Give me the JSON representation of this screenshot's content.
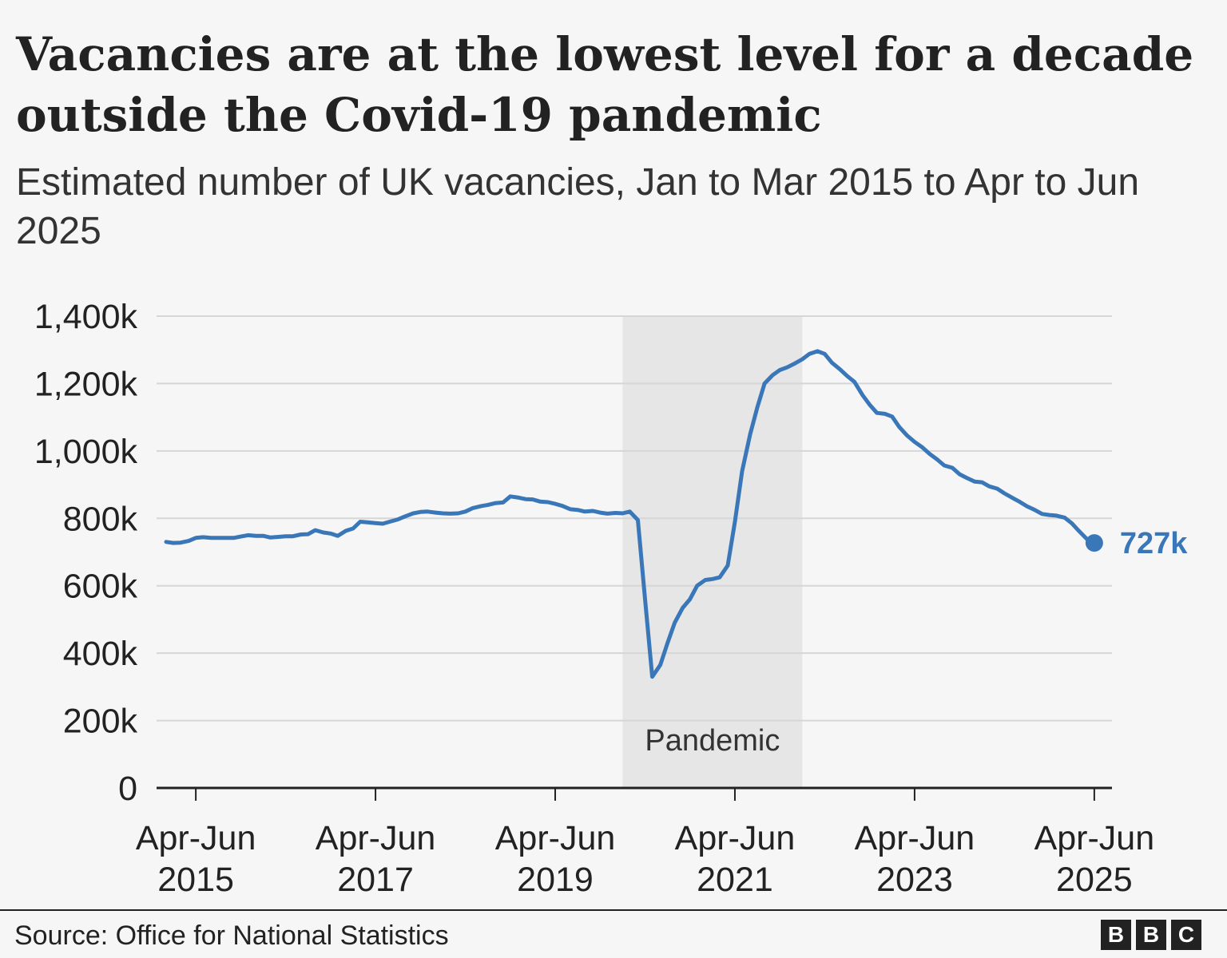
{
  "title": "Vacancies are at the lowest level for a decade outside the Covid-19 pandemic",
  "subtitle": "Estimated number of UK vacancies, Jan to Mar 2015 to Apr to Jun 2025",
  "source": "Source: Office for National Statistics",
  "logo": [
    "B",
    "B",
    "C"
  ],
  "colors": {
    "line": "#3a77b8",
    "band": "#e6e6e6",
    "grid": "#d6d6d6",
    "axis": "#222222",
    "text": "#222222",
    "background": "#f6f6f6"
  },
  "chart_data": {
    "type": "line",
    "y_tick_labels": [
      "0",
      "200k",
      "400k",
      "600k",
      "800k",
      "1,000k",
      "1,200k",
      "1,400k"
    ],
    "y_ticks": [
      0,
      200,
      400,
      600,
      800,
      1000,
      1200,
      1400
    ],
    "ylim": [
      0,
      1400
    ],
    "y_unit": "thousands",
    "grid": true,
    "x_ticks": [
      {
        "label_line1": "Apr-Jun",
        "label_line2": "2015",
        "x": 2015.42
      },
      {
        "label_line1": "Apr-Jun",
        "label_line2": "2017",
        "x": 2017.42
      },
      {
        "label_line1": "Apr-Jun",
        "label_line2": "2019",
        "x": 2019.42
      },
      {
        "label_line1": "Apr-Jun",
        "label_line2": "2021",
        "x": 2021.42
      },
      {
        "label_line1": "Apr-Jun",
        "label_line2": "2023",
        "x": 2023.42
      },
      {
        "label_line1": "Apr-Jun",
        "label_line2": "2025",
        "x": 2025.42
      }
    ],
    "xlim": [
      2015.09,
      2025.51
    ],
    "shaded_period": {
      "label": "Pandemic",
      "start": 2020.17,
      "end": 2022.17
    },
    "end_label": "727k",
    "series": [
      {
        "points": [
          [
            2015.09,
            730
          ],
          [
            2015.17,
            727
          ],
          [
            2015.25,
            728
          ],
          [
            2015.34,
            733
          ],
          [
            2015.42,
            742
          ],
          [
            2015.5,
            744
          ],
          [
            2015.59,
            742
          ],
          [
            2015.67,
            742
          ],
          [
            2015.75,
            742
          ],
          [
            2015.84,
            742
          ],
          [
            2015.92,
            746
          ],
          [
            2016.0,
            750
          ],
          [
            2016.09,
            748
          ],
          [
            2016.17,
            748
          ],
          [
            2016.25,
            743
          ],
          [
            2016.34,
            745
          ],
          [
            2016.42,
            747
          ],
          [
            2016.5,
            747
          ],
          [
            2016.59,
            752
          ],
          [
            2016.67,
            753
          ],
          [
            2016.75,
            765
          ],
          [
            2016.84,
            758
          ],
          [
            2016.92,
            755
          ],
          [
            2017.0,
            748
          ],
          [
            2017.09,
            763
          ],
          [
            2017.17,
            770
          ],
          [
            2017.25,
            790
          ],
          [
            2017.34,
            788
          ],
          [
            2017.42,
            786
          ],
          [
            2017.5,
            784
          ],
          [
            2017.59,
            791
          ],
          [
            2017.67,
            797
          ],
          [
            2017.75,
            806
          ],
          [
            2017.84,
            815
          ],
          [
            2017.92,
            819
          ],
          [
            2018.0,
            820
          ],
          [
            2018.09,
            817
          ],
          [
            2018.17,
            815
          ],
          [
            2018.25,
            814
          ],
          [
            2018.34,
            815
          ],
          [
            2018.42,
            820
          ],
          [
            2018.5,
            830
          ],
          [
            2018.59,
            836
          ],
          [
            2018.67,
            840
          ],
          [
            2018.75,
            845
          ],
          [
            2018.84,
            847
          ],
          [
            2018.92,
            865
          ],
          [
            2019.0,
            862
          ],
          [
            2019.09,
            857
          ],
          [
            2019.17,
            856
          ],
          [
            2019.25,
            850
          ],
          [
            2019.34,
            848
          ],
          [
            2019.42,
            843
          ],
          [
            2019.5,
            837
          ],
          [
            2019.59,
            827
          ],
          [
            2019.67,
            825
          ],
          [
            2019.75,
            820
          ],
          [
            2019.84,
            822
          ],
          [
            2019.92,
            817
          ],
          [
            2020.0,
            814
          ],
          [
            2020.09,
            816
          ],
          [
            2020.17,
            815
          ],
          [
            2020.25,
            820
          ],
          [
            2020.34,
            795
          ],
          [
            2020.42,
            560
          ],
          [
            2020.5,
            330
          ],
          [
            2020.59,
            365
          ],
          [
            2020.67,
            430
          ],
          [
            2020.75,
            490
          ],
          [
            2020.84,
            535
          ],
          [
            2020.92,
            560
          ],
          [
            2021.0,
            600
          ],
          [
            2021.09,
            617
          ],
          [
            2021.17,
            620
          ],
          [
            2021.25,
            625
          ],
          [
            2021.34,
            660
          ],
          [
            2021.42,
            790
          ],
          [
            2021.5,
            940
          ],
          [
            2021.59,
            1050
          ],
          [
            2021.67,
            1130
          ],
          [
            2021.75,
            1200
          ],
          [
            2021.84,
            1225
          ],
          [
            2021.92,
            1240
          ],
          [
            2022.0,
            1248
          ],
          [
            2022.09,
            1260
          ],
          [
            2022.17,
            1272
          ],
          [
            2022.25,
            1288
          ],
          [
            2022.34,
            1296
          ],
          [
            2022.42,
            1288
          ],
          [
            2022.5,
            1262
          ],
          [
            2022.59,
            1242
          ],
          [
            2022.67,
            1222
          ],
          [
            2022.75,
            1205
          ],
          [
            2022.84,
            1166
          ],
          [
            2022.92,
            1137
          ],
          [
            2023.0,
            1113
          ],
          [
            2023.09,
            1110
          ],
          [
            2023.17,
            1102
          ],
          [
            2023.25,
            1071
          ],
          [
            2023.34,
            1045
          ],
          [
            2023.42,
            1027
          ],
          [
            2023.5,
            1012
          ],
          [
            2023.59,
            991
          ],
          [
            2023.67,
            975
          ],
          [
            2023.75,
            957
          ],
          [
            2023.84,
            950
          ],
          [
            2023.92,
            931
          ],
          [
            2024.0,
            920
          ],
          [
            2024.09,
            909
          ],
          [
            2024.17,
            907
          ],
          [
            2024.25,
            895
          ],
          [
            2024.34,
            888
          ],
          [
            2024.42,
            874
          ],
          [
            2024.5,
            862
          ],
          [
            2024.59,
            849
          ],
          [
            2024.67,
            836
          ],
          [
            2024.75,
            826
          ],
          [
            2024.84,
            813
          ],
          [
            2024.92,
            810
          ],
          [
            2025.0,
            808
          ],
          [
            2025.09,
            802
          ],
          [
            2025.17,
            785
          ],
          [
            2025.25,
            762
          ],
          [
            2025.34,
            738
          ],
          [
            2025.42,
            727
          ]
        ]
      }
    ]
  }
}
